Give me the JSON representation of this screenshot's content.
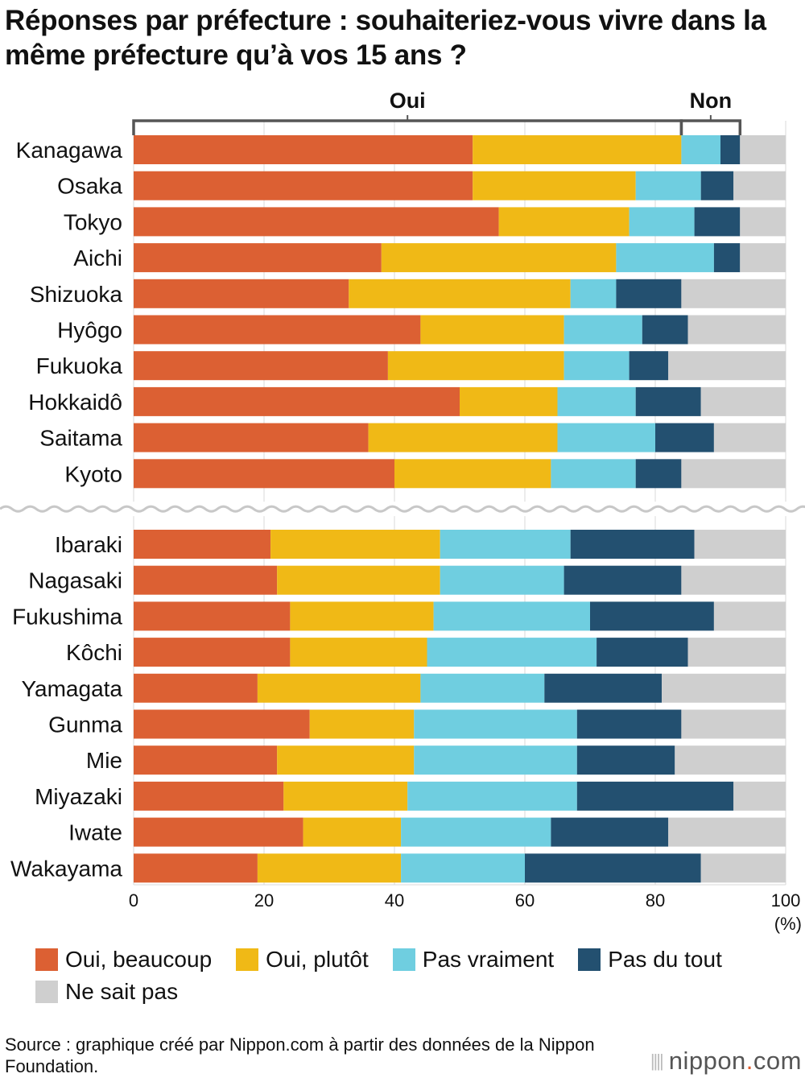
{
  "chart_data": {
    "type": "bar",
    "orientation": "horizontal",
    "stacked": true,
    "title": "Réponses par préfecture : souhaiteriez-vous vivre dans la même préfecture qu’à vos 15 ans ?",
    "xlim": [
      0,
      100
    ],
    "xticks": [
      "0",
      "20",
      "40",
      "60",
      "80",
      "100"
    ],
    "xunit": "(%)",
    "grid": true,
    "groups": [
      {
        "label": "Oui",
        "from": 0,
        "to": 84
      },
      {
        "label": "Non",
        "from": 84,
        "to": 93
      }
    ],
    "categories": [
      "Kanagawa",
      "Osaka",
      "Tokyo",
      "Aichi",
      "Shizuoka",
      "Hyôgo",
      "Fukuoka",
      "Hokkaidô",
      "Saitama",
      "Kyoto",
      "Ibaraki",
      "Nagasaki",
      "Fukushima",
      "Kôchi",
      "Yamagata",
      "Gunma",
      "Mie",
      "Miyazaki",
      "Iwate",
      "Wakayama"
    ],
    "break_after_index": 9,
    "series": [
      {
        "name": "Oui, beaucoup",
        "color": "#dc6033",
        "values": [
          52,
          52,
          56,
          38,
          33,
          44,
          39,
          50,
          36,
          40,
          21,
          22,
          24,
          24,
          19,
          27,
          22,
          23,
          26,
          19
        ]
      },
      {
        "name": "Oui, plutôt",
        "color": "#f0b916",
        "values": [
          32,
          25,
          20,
          36,
          34,
          22,
          27,
          15,
          29,
          24,
          26,
          25,
          22,
          21,
          25,
          16,
          21,
          19,
          15,
          22
        ]
      },
      {
        "name": "Pas vraiment",
        "color": "#6fcee0",
        "values": [
          6,
          10,
          10,
          15,
          7,
          12,
          10,
          12,
          15,
          13,
          20,
          19,
          24,
          26,
          19,
          25,
          25,
          26,
          23,
          19
        ]
      },
      {
        "name": "Pas du tout",
        "color": "#235070",
        "values": [
          3,
          5,
          7,
          4,
          10,
          7,
          6,
          10,
          9,
          7,
          19,
          18,
          19,
          14,
          18,
          16,
          15,
          24,
          18,
          27
        ]
      },
      {
        "name": "Ne sait pas",
        "color": "#cfcfcf",
        "values": [
          7,
          8,
          7,
          7,
          16,
          15,
          18,
          13,
          11,
          16,
          14,
          16,
          11,
          15,
          19,
          16,
          17,
          8,
          18,
          13
        ]
      }
    ],
    "legend_position": "bottom"
  },
  "source": "Source : graphique créé par Nippon.com à partir des données de la Nippon Foundation.",
  "brand": {
    "mark": "||||",
    "name": "nippon",
    "dot": ".",
    "tld": "com"
  }
}
